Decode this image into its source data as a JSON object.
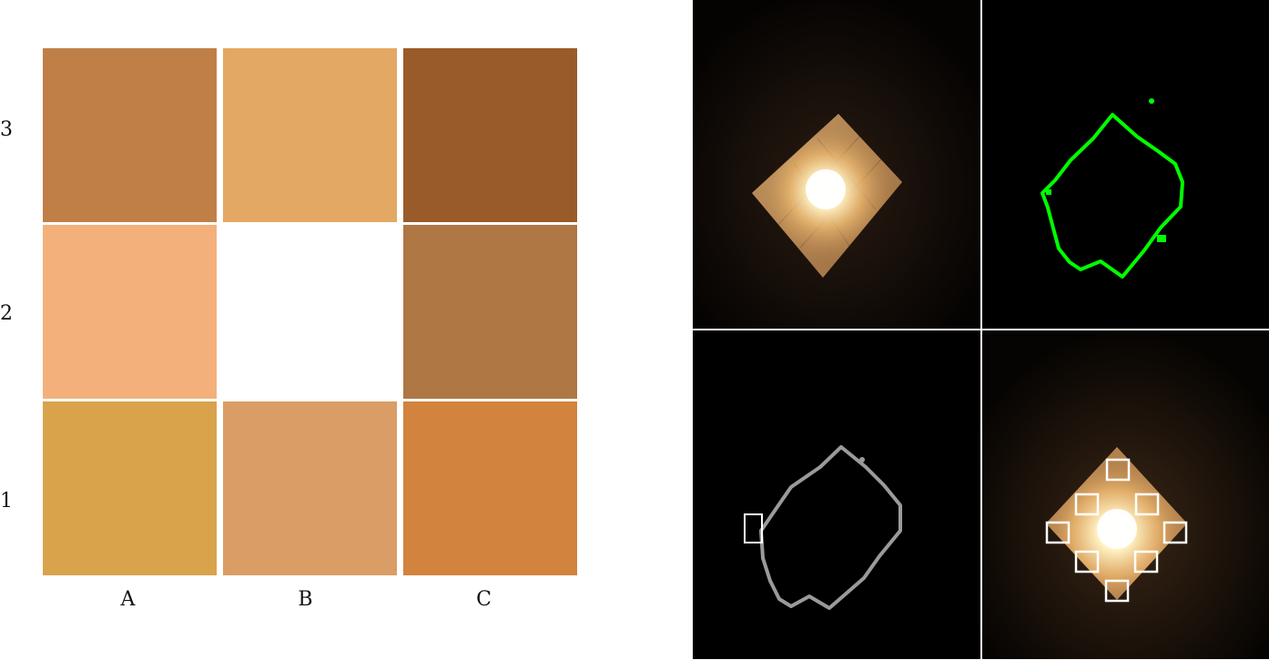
{
  "color_grid": {
    "rows": [
      "3",
      "2",
      "1"
    ],
    "columns": [
      "A",
      "B",
      "C"
    ],
    "cells": [
      {
        "row": "3",
        "col": "A",
        "color": "#bf7f47"
      },
      {
        "row": "3",
        "col": "B",
        "color": "#e3a863"
      },
      {
        "row": "3",
        "col": "C",
        "color": "#995b29"
      },
      {
        "row": "2",
        "col": "A",
        "color": "#f3b07b"
      },
      {
        "row": "2",
        "col": "B",
        "color": "#ffffff"
      },
      {
        "row": "2",
        "col": "C",
        "color": "#ae7744"
      },
      {
        "row": "1",
        "col": "A",
        "color": "#d8a34b"
      },
      {
        "row": "1",
        "col": "B",
        "color": "#da9d66"
      },
      {
        "row": "1",
        "col": "C",
        "color": "#d2833d"
      }
    ]
  },
  "panels": [
    {
      "id": "photo",
      "content": "illuminated-tile-photo"
    },
    {
      "id": "green-contour",
      "content": "contour",
      "color": "#00ff00"
    },
    {
      "id": "gray-contour",
      "content": "contour-with-box",
      "color": "#9a9a9a"
    },
    {
      "id": "photo-boxes",
      "content": "photo-with-sample-boxes",
      "box_count": 8
    }
  ]
}
